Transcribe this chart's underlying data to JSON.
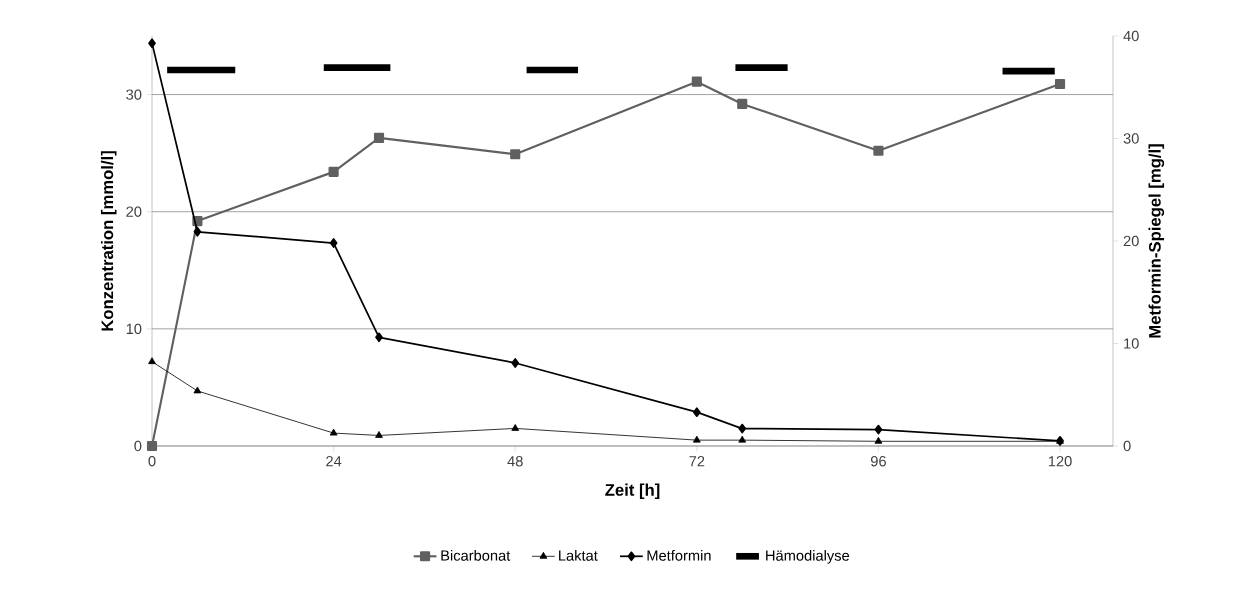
{
  "chart_data": {
    "type": "line",
    "xlabel": "Zeit [h]",
    "ylabel": "Konzentration [mmol/l]",
    "y2label": "Metformin-Spiegel [mg/l]",
    "xlim": [
      0,
      127
    ],
    "xticks": [
      0,
      24,
      48,
      72,
      96,
      120
    ],
    "ylim": [
      0,
      35
    ],
    "yticks": [
      0,
      10,
      20,
      30
    ],
    "y2lim": [
      0,
      40
    ],
    "y2ticks": [
      0,
      10,
      20,
      30,
      40
    ],
    "grid": "y",
    "legend": "bottom",
    "series": [
      {
        "name": "Bicarbonat",
        "color": "#606060",
        "marker": "square",
        "x": [
          0,
          6,
          24,
          30,
          48,
          72,
          78,
          96,
          120
        ],
        "values": [
          0,
          19.2,
          23.4,
          26.3,
          24.9,
          31.1,
          29.2,
          25.2,
          30.9
        ]
      },
      {
        "name": "Laktat",
        "color": "#000000",
        "marker": "triangle",
        "x": [
          0,
          6,
          24,
          30,
          48,
          72,
          78,
          96,
          120
        ],
        "values": [
          7.2,
          4.7,
          1.1,
          0.9,
          1.5,
          0.5,
          0.5,
          0.4,
          0.4
        ]
      },
      {
        "name": "Metformin",
        "color": "#000000",
        "marker": "diamond",
        "axis": "y2",
        "x": [
          0,
          6,
          24,
          30,
          48,
          72,
          78,
          96,
          120
        ],
        "values": [
          39.3,
          20.9,
          19.8,
          10.6,
          8.1,
          3.3,
          1.7,
          1.6,
          0.5
        ]
      },
      {
        "name": "Hämodialyse",
        "color": "#000000",
        "marker": "none",
        "x": [
          2,
          11
        ],
        "values": [
          32.1,
          32.1
        ]
      },
      {
        "color": "#000000",
        "marker": "none",
        "x": [
          22.7,
          31.5
        ],
        "values": [
          32.3,
          32.3
        ]
      },
      {
        "color": "#000000",
        "marker": "none",
        "x": [
          49.5,
          56.3
        ],
        "values": [
          32.1,
          32.1
        ]
      },
      {
        "color": "#000000",
        "marker": "none",
        "x": [
          77.1,
          84
        ],
        "values": [
          32.3,
          32.3
        ]
      },
      {
        "color": "#000000",
        "marker": "none",
        "x": [
          112.4,
          119.3
        ],
        "values": [
          32.0,
          32.0
        ]
      }
    ]
  }
}
